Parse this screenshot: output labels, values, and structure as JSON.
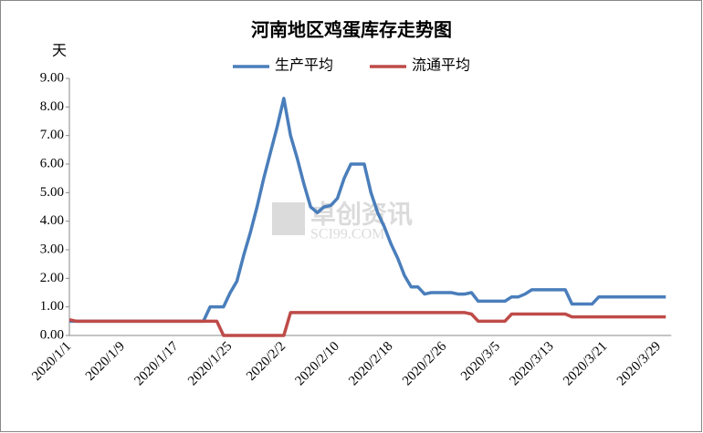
{
  "chart_data": {
    "type": "line",
    "title": "河南地区鸡蛋库存走势图",
    "y_label": "天",
    "watermark": [
      "卓创资讯",
      "SCI99.COM"
    ],
    "categories": [
      "2020/1/1",
      null,
      null,
      null,
      null,
      null,
      null,
      null,
      "2020/1/9",
      null,
      null,
      null,
      null,
      null,
      null,
      null,
      "2020/1/17",
      null,
      null,
      null,
      null,
      null,
      null,
      null,
      "2020/1/25",
      null,
      null,
      null,
      null,
      null,
      null,
      null,
      "2020/2/2",
      null,
      null,
      null,
      null,
      null,
      null,
      null,
      "2020/2/10",
      null,
      null,
      null,
      null,
      null,
      null,
      null,
      "2020/2/18",
      null,
      null,
      null,
      null,
      null,
      null,
      null,
      "2020/2/26",
      null,
      null,
      null,
      null,
      null,
      null,
      null,
      "2020/3/5",
      null,
      null,
      null,
      null,
      null,
      null,
      null,
      "2020/3/13",
      null,
      null,
      null,
      null,
      null,
      null,
      null,
      "2020/3/21",
      null,
      null,
      null,
      null,
      null,
      null,
      null,
      "2020/3/29",
      null
    ],
    "series": [
      {
        "name": "生产平均",
        "color": "#4a7ebb",
        "values": [
          0.5,
          0.5,
          0.5,
          0.5,
          0.5,
          0.5,
          0.5,
          0.5,
          0.5,
          0.5,
          0.5,
          0.5,
          0.5,
          0.5,
          0.5,
          0.5,
          0.5,
          0.5,
          0.5,
          0.5,
          0.5,
          1.0,
          1.0,
          1.0,
          1.5,
          1.9,
          2.8,
          3.6,
          4.5,
          5.5,
          6.4,
          7.3,
          8.3,
          7.0,
          6.2,
          5.3,
          4.5,
          4.3,
          4.5,
          4.55,
          4.8,
          5.5,
          6.0,
          6.0,
          6.0,
          5.0,
          4.3,
          3.8,
          3.2,
          2.7,
          2.1,
          1.7,
          1.7,
          1.45,
          1.5,
          1.5,
          1.5,
          1.5,
          1.45,
          1.45,
          1.5,
          1.2,
          1.2,
          1.2,
          1.2,
          1.2,
          1.35,
          1.35,
          1.45,
          1.6,
          1.6,
          1.6,
          1.6,
          1.6,
          1.6,
          1.1,
          1.1,
          1.1,
          1.1,
          1.35,
          1.35,
          1.35,
          1.35,
          1.35,
          1.35,
          1.35,
          1.35,
          1.35,
          1.35,
          1.35
        ]
      },
      {
        "name": "流通平均",
        "color": "#be4b48",
        "values": [
          0.55,
          0.5,
          0.5,
          0.5,
          0.5,
          0.5,
          0.5,
          0.5,
          0.5,
          0.5,
          0.5,
          0.5,
          0.5,
          0.5,
          0.5,
          0.5,
          0.5,
          0.5,
          0.5,
          0.5,
          0.5,
          0.5,
          0.5,
          0,
          0,
          0,
          0,
          0,
          0,
          0,
          0,
          0,
          0,
          0.8,
          0.8,
          0.8,
          0.8,
          0.8,
          0.8,
          0.8,
          0.8,
          0.8,
          0.8,
          0.8,
          0.8,
          0.8,
          0.8,
          0.8,
          0.8,
          0.8,
          0.8,
          0.8,
          0.8,
          0.8,
          0.8,
          0.8,
          0.8,
          0.8,
          0.8,
          0.8,
          0.75,
          0.5,
          0.5,
          0.5,
          0.5,
          0.5,
          0.75,
          0.75,
          0.75,
          0.75,
          0.75,
          0.75,
          0.75,
          0.75,
          0.75,
          0.65,
          0.65,
          0.65,
          0.65,
          0.65,
          0.65,
          0.65,
          0.65,
          0.65,
          0.65,
          0.65,
          0.65,
          0.65,
          0.65,
          0.65
        ]
      }
    ],
    "ylim": [
      0,
      9
    ],
    "yticks": [
      {
        "value": 0,
        "label": "0.00"
      },
      {
        "value": 1,
        "label": "1.00"
      },
      {
        "value": 2,
        "label": "2.00"
      },
      {
        "value": 3,
        "label": "3.00"
      },
      {
        "value": 4,
        "label": "4.00"
      },
      {
        "value": 5,
        "label": "5.00"
      },
      {
        "value": 6,
        "label": "6.00"
      },
      {
        "value": 7,
        "label": "7.00"
      },
      {
        "value": 8,
        "label": "8.00"
      },
      {
        "value": 9,
        "label": "9.00"
      }
    ],
    "grid": false,
    "legend": "top"
  }
}
